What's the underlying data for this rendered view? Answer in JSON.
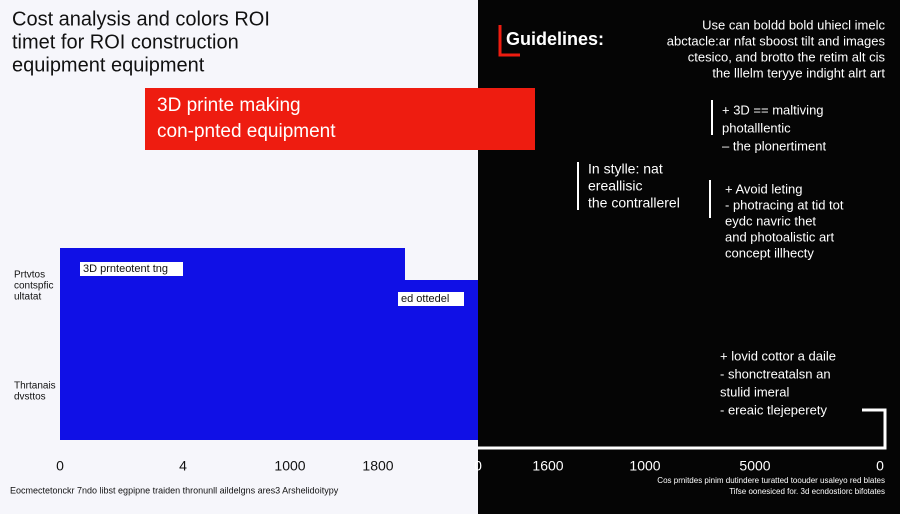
{
  "title": [
    "Cost analysis and colors ROI",
    "timet for  ROI construction",
    "equipment equipment"
  ],
  "banner": [
    "3D printe making",
    "con-pnted equipment"
  ],
  "blue_labels": [
    "3D prnteotent tng",
    "ed ottedel"
  ],
  "side_labels": [
    [
      "Prtvtos",
      "contspfic",
      "ultatat"
    ],
    [
      "Thrtanais",
      "dvsttos"
    ]
  ],
  "axis_labels": [
    "0",
    "4",
    "1000",
    "1800",
    "0",
    "1600",
    "1000",
    "5000",
    "0"
  ],
  "footer_left": "Eocmectetonckr 7ndo libst egpipne traiden thronunll aildelgns ares3 Arshelidoitypy",
  "footer_right": [
    "Cos prnitdes pinim dutindere turatted toouder usaleyo red blates",
    "Tifse oonesiced for. 3d ecndostiorc bifotates"
  ],
  "guidelines": {
    "heading": "Guidelines:",
    "intro": [
      "Use can boldd bold uhiecl imelc",
      "abctacle:ar nfat sboost tilt and images",
      "ctesico, and brotto the retim alt cis",
      "the lllelm teryye indight alrt art"
    ],
    "style": [
      "In stylle: nat",
      "ereallisic",
      "the contrallerel"
    ],
    "notes": [
      [
        "+ 3D == maltiving",
        "photalllentic",
        "– the plonertiment"
      ],
      [
        "+ Avoid leting",
        "- photracing at tid tot",
        "eydc navric thet",
        "and photoalistic art",
        "concept illhecty"
      ],
      [
        "+ lovid cottor a daile",
        "- shonctreatalsn an",
        "stulid imeral",
        "- ereaic tlejeperety"
      ]
    ]
  }
}
